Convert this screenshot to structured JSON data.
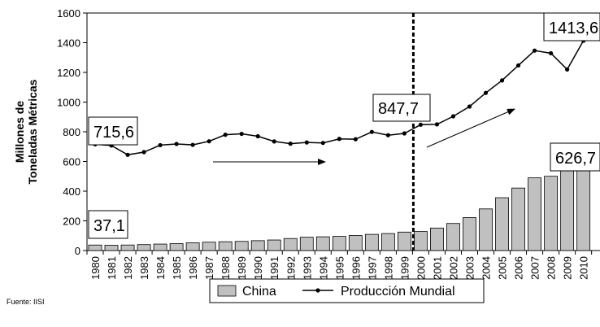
{
  "chart_data": {
    "type": "bar",
    "ylabel_lines": [
      "Millones de",
      "Toneladas Métricas"
    ],
    "ylim": [
      0,
      1600
    ],
    "yticks": [
      0,
      200,
      400,
      600,
      800,
      1000,
      1200,
      1400,
      1600
    ],
    "categories": [
      "1980",
      "1981",
      "1982",
      "1983",
      "1984",
      "1985",
      "1986",
      "1987",
      "1988",
      "1989",
      "1990",
      "1991",
      "1992",
      "1993",
      "1994",
      "1995",
      "1996",
      "1997",
      "1998",
      "1999",
      "2000",
      "2001",
      "2002",
      "2003",
      "2004",
      "2005",
      "2006",
      "2007",
      "2008",
      "2009",
      "2010"
    ],
    "series": [
      {
        "name": "China",
        "kind": "bar",
        "color": "#c0c0c0",
        "values": [
          37.1,
          35.6,
          37.2,
          40.0,
          43.5,
          46.8,
          52.2,
          56.3,
          59.4,
          61.6,
          66.4,
          71.0,
          80.9,
          89.6,
          92.6,
          95.4,
          101.2,
          108.9,
          114.6,
          124.3,
          128.5,
          151.6,
          182.4,
          222.3,
          280.5,
          355.8,
          421.0,
          489.7,
          500.3,
          573.6,
          626.7
        ]
      },
      {
        "name": "Producción Mundial",
        "kind": "line",
        "color": "#000000",
        "values": [
          715.6,
          707.6,
          645.0,
          663.0,
          710.0,
          718.0,
          712.0,
          736.0,
          780.0,
          786.0,
          770.0,
          735.0,
          720.0,
          728.0,
          725.0,
          752.0,
          750.0,
          799.0,
          777.0,
          789.0,
          847.7,
          850.0,
          904.0,
          970.0,
          1062.0,
          1146.0,
          1247.0,
          1347.0,
          1329.0,
          1220.0,
          1413.6
        ]
      }
    ],
    "annotations": [
      {
        "text": "715,6"
      },
      {
        "text": "37,1"
      },
      {
        "text": "847,7"
      },
      {
        "text": "1413,6"
      },
      {
        "text": "626,7"
      }
    ],
    "legend": {
      "placement": "bottom-center",
      "entries": [
        "China",
        "Producción Mundial"
      ]
    },
    "source": "Fuente: IISI"
  }
}
